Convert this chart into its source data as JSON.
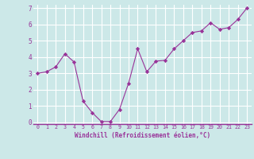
{
  "x": [
    0,
    1,
    2,
    3,
    4,
    5,
    6,
    7,
    8,
    9,
    10,
    11,
    12,
    13,
    14,
    15,
    16,
    17,
    18,
    19,
    20,
    21,
    22,
    23
  ],
  "y": [
    3.0,
    3.1,
    3.4,
    4.2,
    3.7,
    1.3,
    0.6,
    0.05,
    0.05,
    0.8,
    2.4,
    4.5,
    3.1,
    3.75,
    3.8,
    4.5,
    5.0,
    5.5,
    5.6,
    6.1,
    5.7,
    5.8,
    6.3,
    7.0
  ],
  "line_color": "#993399",
  "marker": "D",
  "marker_size": 2.2,
  "bg_color": "#cce8e8",
  "grid_color": "#ffffff",
  "xlabel": "Windchill (Refroidissement éolien,°C)",
  "xlabel_color": "#993399",
  "tick_color": "#993399",
  "axis_line_color": "#993399",
  "ylim": [
    -0.1,
    7.2
  ],
  "xlim": [
    -0.5,
    23.5
  ],
  "yticks": [
    0,
    1,
    2,
    3,
    4,
    5,
    6,
    7
  ],
  "xticks": [
    0,
    1,
    2,
    3,
    4,
    5,
    6,
    7,
    8,
    9,
    10,
    11,
    12,
    13,
    14,
    15,
    16,
    17,
    18,
    19,
    20,
    21,
    22,
    23
  ],
  "xlabel_fontsize": 5.5,
  "xtick_fontsize": 4.8,
  "ytick_fontsize": 5.5
}
